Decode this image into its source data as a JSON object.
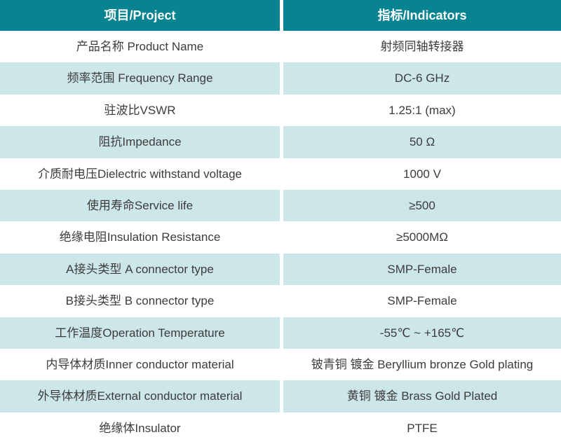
{
  "table": {
    "columns": [
      {
        "label": "项目/Project"
      },
      {
        "label": "指标/Indicators"
      }
    ],
    "rows": [
      {
        "project": "产品名称 Product Name",
        "indicator": "射频同轴转接器"
      },
      {
        "project": "频率范围 Frequency Range",
        "indicator": "DC-6 GHz"
      },
      {
        "project": "驻波比VSWR",
        "indicator": "1.25:1 (max)"
      },
      {
        "project": "阻抗Impedance",
        "indicator": "50 Ω"
      },
      {
        "project": "介质耐电压Dielectric withstand voltage",
        "indicator": "1000 V"
      },
      {
        "project": "使用寿命Service life",
        "indicator": "≥500"
      },
      {
        "project": "绝缘电阻Insulation Resistance",
        "indicator": "≥5000MΩ"
      },
      {
        "project": "A接头类型 A connector type",
        "indicator": "SMP-Female"
      },
      {
        "project": "B接头类型 B connector type",
        "indicator": "SMP-Female"
      },
      {
        "project": "工作温度Operation Temperature",
        "indicator": "-55℃ ~ +165℃"
      },
      {
        "project": "内导体材质Inner conductor material",
        "indicator": "铍青铜 镀金 Beryllium bronze Gold plating"
      },
      {
        "project": "外导体材质External conductor material",
        "indicator": "黄铜 镀金 Brass Gold Plated"
      },
      {
        "project": "绝缘体Insulator",
        "indicator": "PTFE"
      }
    ],
    "colors": {
      "header_bg": "#078392",
      "row_bg": "#FFFFFF",
      "row_alt_bg": "#CDE6EA",
      "header_text": "#FFFFFF",
      "body_text": "#3C3C3C",
      "divider": "#FFFFFF"
    }
  }
}
